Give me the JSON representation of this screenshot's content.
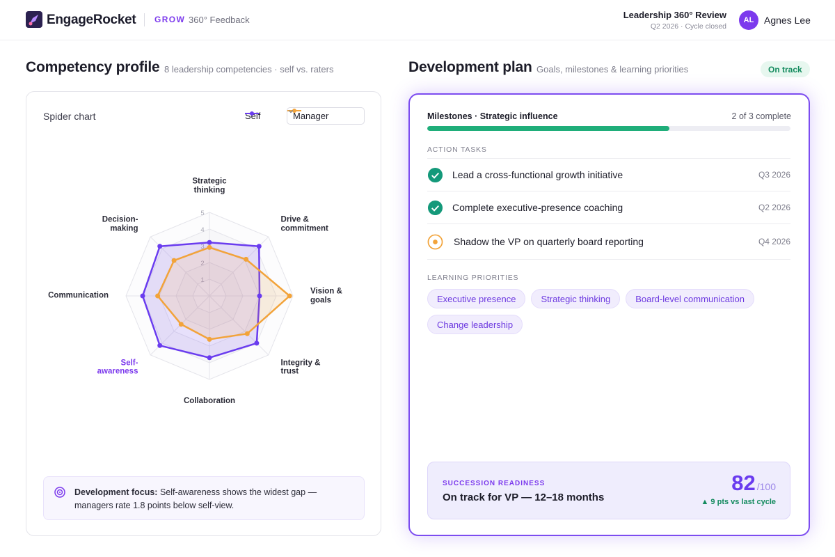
{
  "header": {
    "brand": "EngageRocket",
    "product": "GROW",
    "module": "360° Feedback",
    "review_title": "Leadership 360° Review",
    "review_status": "Q2 2026 · Cycle closed",
    "user_initials": "AL",
    "user_name": "Agnes Lee"
  },
  "competency": {
    "title": "Competency profile",
    "subtitle": "8 leadership competencies · self vs. raters",
    "chart_title": "Spider chart",
    "focus_label": "Development focus:",
    "focus_text": "Self-awareness shows the widest gap — managers rate 1.8 points below self-view."
  },
  "chart_data": {
    "type": "radar",
    "categories": [
      "Strategic thinking",
      "Drive & commitment",
      "Vision & goals",
      "Integrity & trust",
      "Collaboration",
      "Self-awareness",
      "Communication",
      "Decision-making"
    ],
    "series": [
      {
        "name": "Self",
        "color": "#6a3cef",
        "values": [
          3.2,
          4.2,
          3.0,
          4.0,
          3.7,
          4.2,
          4.0,
          4.2
        ]
      },
      {
        "name": "Manager",
        "color": "#f2a33a",
        "values": [
          2.9,
          3.1,
          4.8,
          3.2,
          2.6,
          2.4,
          3.1,
          3.0
        ]
      }
    ],
    "rlim": [
      0,
      5
    ],
    "rticks": [
      1,
      2,
      3,
      4,
      5
    ],
    "grid": true,
    "highlight_color": "#7c3aed"
  },
  "development": {
    "title": "Development plan",
    "subtitle": "Goals, milestones & learning priorities",
    "status": "On track",
    "milestone_title": "Milestones · Strategic influence",
    "milestone_progress": "2 of 3 complete",
    "tasks_heading": "ACTION TASKS",
    "tasks": [
      {
        "label": "Lead a cross-functional growth initiative",
        "due": "Q3 2026",
        "status": "done"
      },
      {
        "label": "Complete executive-presence coaching",
        "due": "Q2 2026",
        "status": "done"
      },
      {
        "label": "Shadow the VP on quarterly board reporting",
        "due": "Q4 2026",
        "status": "in-progress"
      }
    ],
    "priorities_heading": "LEARNING PRIORITIES",
    "priorities": [
      "Executive presence",
      "Strategic thinking",
      "Board-level communication",
      "Change leadership"
    ],
    "readiness": {
      "label": "SUCCESSION READINESS",
      "headline": "On track for VP — 12–18 months",
      "score": "82",
      "max": "/100",
      "delta": "▲ 9 pts vs last cycle"
    }
  }
}
